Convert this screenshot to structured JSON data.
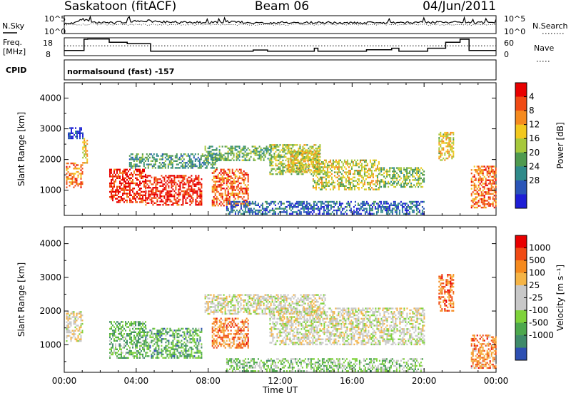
{
  "header": {
    "station": "Saskatoon (fitACF)",
    "beam": "Beam 06",
    "date": "04/Jun/2011"
  },
  "strip_labels": {
    "nsky": "N.Sky",
    "nsearch": "N.Search",
    "nsky_ticks": [
      "10^5",
      "10^0"
    ],
    "nsearch_ticks": [
      "10^5",
      "10^0"
    ],
    "freq_line1": "Freq.",
    "freq_line2": "[MHz]",
    "freq_ticks": [
      "18",
      "8"
    ],
    "nave": "Nave",
    "nave_ticks": [
      "60",
      "0"
    ],
    "cpid": "CPID",
    "cpid_value": "normalsound (fast) -157"
  },
  "chart_data": [
    {
      "type": "line",
      "panel": "noise",
      "series": [
        {
          "name": "N.Sky",
          "style": "solid"
        },
        {
          "name": "N.Search",
          "style": "dotted"
        }
      ],
      "x_hours": [
        0,
        0.5,
        1,
        1.5,
        2,
        2.5,
        3,
        3.5,
        4,
        4.5,
        5,
        5.5,
        6,
        6.5,
        7,
        7.5,
        8,
        8.5,
        9,
        9.5,
        10,
        10.5,
        11,
        11.5,
        12,
        12.5,
        13,
        13.5,
        14,
        14.5,
        15,
        15.5,
        16,
        16.5,
        17,
        17.5,
        18,
        18.5,
        19,
        19.5,
        20,
        20.5,
        21,
        21.5,
        22,
        22.5,
        23,
        23.5,
        24
      ],
      "level": [
        0.55,
        0.6,
        0.82,
        0.62,
        0.6,
        0.6,
        0.62,
        0.63,
        0.7,
        0.72,
        0.68,
        0.65,
        0.64,
        0.63,
        0.64,
        0.62,
        0.62,
        0.64,
        0.66,
        0.68,
        0.62,
        0.6,
        0.58,
        0.6,
        0.62,
        0.6,
        0.6,
        0.62,
        0.6,
        0.62,
        0.6,
        0.58,
        0.6,
        0.62,
        0.6,
        0.64,
        0.6,
        0.62,
        0.6,
        0.62,
        0.64,
        0.62,
        0.64,
        0.62,
        0.62,
        0.6,
        0.6,
        0.62,
        0.6
      ]
    },
    {
      "type": "line",
      "panel": "frequency",
      "ylim": [
        8,
        18
      ],
      "steps": [
        [
          0,
          10.5
        ],
        [
          1.1,
          18
        ],
        [
          1.3,
          18.2
        ],
        [
          2.5,
          16
        ],
        [
          3.5,
          15
        ],
        [
          4.8,
          10
        ],
        [
          10.5,
          10.8
        ],
        [
          11.3,
          10
        ],
        [
          13.9,
          12
        ],
        [
          14.1,
          10
        ],
        [
          16.8,
          11
        ],
        [
          18.2,
          12
        ],
        [
          18.6,
          10
        ],
        [
          20.2,
          12
        ],
        [
          21.2,
          16
        ],
        [
          22,
          18
        ],
        [
          22.5,
          10.5
        ],
        [
          24,
          10.5
        ]
      ],
      "nave_ylim": [
        0,
        60
      ],
      "nave_level": 33
    },
    {
      "type": "heatmap",
      "panel": "power",
      "xlabel": "",
      "ylabel": "Slant Range [km]",
      "xlim": [
        0,
        24
      ],
      "ylim": [
        180,
        4500
      ],
      "x_ticks": [
        "00:00",
        "04:00",
        "08:00",
        "12:00",
        "16:00",
        "20:00",
        "00:00"
      ],
      "y_ticks": [
        "1000",
        "2000",
        "3000",
        "4000"
      ],
      "colorbar": {
        "label": "Power [dB]",
        "ticks": [
          "4",
          "8",
          "12",
          "16",
          "20",
          "24",
          "28"
        ],
        "colors": [
          "#1e1ed6",
          "#2a55b8",
          "#2f8a8a",
          "#4f9a4f",
          "#a6c83c",
          "#f2c81e",
          "#f58a1e",
          "#f04a14",
          "#e80000"
        ]
      },
      "regions": [
        {
          "t0": 0.1,
          "t1": 1.0,
          "r0": 1100,
          "r1": 1900,
          "level": 0.75
        },
        {
          "t0": 0.2,
          "t1": 1.0,
          "r0": 2700,
          "r1": 3050,
          "level": 0.1
        },
        {
          "t0": 1.0,
          "t1": 1.3,
          "r0": 1900,
          "r1": 2700,
          "level": 0.6
        },
        {
          "t0": 2.5,
          "t1": 4.5,
          "r0": 600,
          "r1": 1700,
          "level": 0.9
        },
        {
          "t0": 4.5,
          "t1": 7.6,
          "r0": 550,
          "r1": 1500,
          "level": 0.93
        },
        {
          "t0": 3.6,
          "t1": 8.5,
          "r0": 1700,
          "r1": 2200,
          "level": 0.35
        },
        {
          "t0": 8.2,
          "t1": 10.2,
          "r0": 500,
          "r1": 1700,
          "level": 0.8
        },
        {
          "t0": 7.8,
          "t1": 11.5,
          "r0": 2000,
          "r1": 2450,
          "level": 0.4
        },
        {
          "t0": 11.4,
          "t1": 14.2,
          "r0": 1500,
          "r1": 2500,
          "level": 0.5
        },
        {
          "t0": 12.4,
          "t1": 14.2,
          "r0": 1600,
          "r1": 2300,
          "level": 0.6
        },
        {
          "t0": 13.8,
          "t1": 17.5,
          "r0": 1000,
          "r1": 2000,
          "level": 0.55
        },
        {
          "t0": 17.5,
          "t1": 20.0,
          "r0": 1100,
          "r1": 1750,
          "level": 0.45
        },
        {
          "t0": 9.0,
          "t1": 20.0,
          "r0": 220,
          "r1": 650,
          "level": 0.2
        },
        {
          "t0": 20.8,
          "t1": 21.6,
          "r0": 2000,
          "r1": 2900,
          "level": 0.6
        },
        {
          "t0": 22.6,
          "t1": 24.0,
          "r0": 450,
          "r1": 1800,
          "level": 0.78
        }
      ]
    },
    {
      "type": "heatmap",
      "panel": "velocity",
      "xlabel": "Time UT",
      "ylabel": "Slant Range [km]",
      "xlim": [
        0,
        24
      ],
      "ylim": [
        180,
        4500
      ],
      "x_ticks": [
        "00:00",
        "04:00",
        "08:00",
        "12:00",
        "16:00",
        "20:00",
        "00:00"
      ],
      "y_ticks": [
        "1000",
        "2000",
        "3000",
        "4000"
      ],
      "colorbar": {
        "label": "Velocity [m s⁻¹]",
        "ticks": [
          "1000",
          "500",
          "100",
          "25",
          "-25",
          "-100",
          "-500",
          "-1000"
        ],
        "colors": [
          "#2d4fb2",
          "#3f8a6a",
          "#4da84d",
          "#7ed23a",
          "#c8c8c8",
          "#c8c8c8",
          "#f5b446",
          "#f58a1e",
          "#f04a14",
          "#e80000"
        ]
      },
      "regions": [
        {
          "t0": 0.1,
          "t1": 1.0,
          "r0": 1100,
          "r1": 2000,
          "level": 0.5
        },
        {
          "t0": 2.5,
          "t1": 4.5,
          "r0": 600,
          "r1": 1700,
          "level": 0.3
        },
        {
          "t0": 4.5,
          "t1": 7.6,
          "r0": 600,
          "r1": 1500,
          "level": 0.25
        },
        {
          "t0": 8.2,
          "t1": 10.2,
          "r0": 900,
          "r1": 1800,
          "level": 0.75
        },
        {
          "t0": 7.8,
          "t1": 14.5,
          "r0": 1900,
          "r1": 2500,
          "level": 0.5
        },
        {
          "t0": 11.4,
          "t1": 20.0,
          "r0": 1000,
          "r1": 2100,
          "level": 0.5
        },
        {
          "t0": 9.0,
          "t1": 20.0,
          "r0": 220,
          "r1": 600,
          "level": 0.35
        },
        {
          "t0": 20.8,
          "t1": 21.6,
          "r0": 2000,
          "r1": 3100,
          "level": 0.8
        },
        {
          "t0": 22.6,
          "t1": 24.0,
          "r0": 300,
          "r1": 1300,
          "level": 0.75
        }
      ]
    }
  ]
}
